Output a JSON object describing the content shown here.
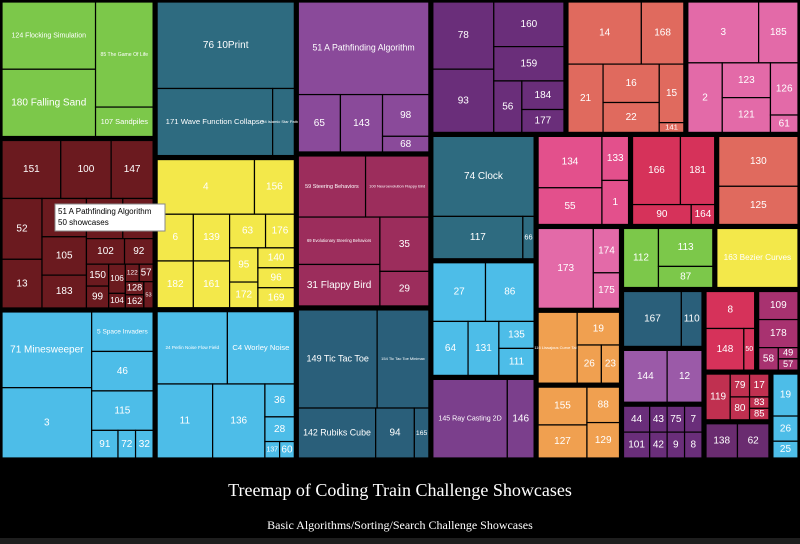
{
  "chart_data": {
    "type": "treemap",
    "title": "Treemap of Coding Train Challenge Showcases",
    "subtitle": "Basic Algorithms/Sorting/Search Challenge Showcases",
    "tooltip": {
      "title": "51 A Pathfinding Algorithm",
      "text": "50 showcases"
    },
    "groups": [
      {
        "color": "#7cc84a",
        "children": [
          {
            "name": "124 Flocking Simulation",
            "value": 26
          },
          {
            "name": "180 Falling Sand",
            "value": 26
          },
          {
            "name": "85 The Game Of Life",
            "value": 25
          },
          {
            "name": "107 Sandpiles",
            "value": 7
          }
        ]
      },
      {
        "color": "#6b1a1f",
        "children": [
          {
            "name": "151",
            "value": 14
          },
          {
            "name": "100",
            "value": 12
          },
          {
            "name": "147",
            "value": 10
          },
          {
            "name": "52",
            "value": 10
          },
          {
            "name": "13",
            "value": 8
          },
          {
            "name": "132",
            "value": 7
          },
          {
            "name": "105",
            "value": 7
          },
          {
            "name": "183",
            "value": 6
          },
          {
            "name": "34",
            "value": 6
          },
          {
            "name": "103",
            "value": 5
          },
          {
            "name": "102",
            "value": 4
          },
          {
            "name": "92",
            "value": 3
          },
          {
            "name": "150",
            "value": 2
          },
          {
            "name": "99",
            "value": 2
          },
          {
            "name": "106",
            "value": 2
          },
          {
            "name": "104",
            "value": 1
          },
          {
            "name": "122",
            "value": 1
          },
          {
            "name": "57",
            "value": 1
          },
          {
            "name": "128",
            "value": 1
          },
          {
            "name": "162",
            "value": 1
          },
          {
            "name": "53",
            "value": 1
          }
        ]
      },
      {
        "color": "#4dbde8",
        "children": [
          {
            "name": "71 Minesweeper",
            "value": 28
          },
          {
            "name": "3",
            "value": 26
          },
          {
            "name": "5 Space Invaders",
            "value": 10
          },
          {
            "name": "46",
            "value": 10
          },
          {
            "name": "115",
            "value": 10
          },
          {
            "name": "91",
            "value": 3
          },
          {
            "name": "72",
            "value": 2
          },
          {
            "name": "32",
            "value": 2
          }
        ]
      },
      {
        "color": "#2e6b80",
        "children": [
          {
            "name": "76 10Print",
            "value": 49
          },
          {
            "name": "171 Wave Function Collapse",
            "value": 32
          },
          {
            "name": "54 Islamic Star Patterns",
            "value": 6
          }
        ]
      },
      {
        "color": "#f3e84a",
        "children": [
          {
            "name": "4",
            "value": 22
          },
          {
            "name": "156",
            "value": 9
          },
          {
            "name": "6",
            "value": 7
          },
          {
            "name": "182",
            "value": 7
          },
          {
            "name": "139",
            "value": 7
          },
          {
            "name": "161",
            "value": 7
          },
          {
            "name": "63",
            "value": 5
          },
          {
            "name": "176",
            "value": 4
          },
          {
            "name": "95",
            "value": 4
          },
          {
            "name": "172",
            "value": 3
          },
          {
            "name": "140",
            "value": 3
          },
          {
            "name": "96",
            "value": 3
          },
          {
            "name": "169",
            "value": 3
          }
        ]
      },
      {
        "color": "#4dbde8",
        "children": [
          {
            "name": "24 Perlin Noise Flow Field",
            "value": 21
          },
          {
            "name": "C4 Worley Noise",
            "value": 20
          },
          {
            "name": "11",
            "value": 17
          },
          {
            "name": "136",
            "value": 16
          },
          {
            "name": "36",
            "value": 4
          },
          {
            "name": "28",
            "value": 3
          },
          {
            "name": "137",
            "value": 1
          },
          {
            "name": "60",
            "value": 1
          }
        ]
      },
      {
        "color": "#8a4a9a",
        "children": [
          {
            "name": "51 A Pathfinding Algorithm",
            "value": 50
          },
          {
            "name": "65",
            "value": 10
          },
          {
            "name": "143",
            "value": 10
          },
          {
            "name": "98",
            "value": 8
          },
          {
            "name": "68",
            "value": 3
          }
        ]
      },
      {
        "color": "#9c2d5c",
        "children": [
          {
            "name": "59 Steering Behaviors",
            "value": 17
          },
          {
            "name": "100 Neuroevolution Flappy Bird",
            "value": 16
          },
          {
            "name": "69 Evolutionary Steering Behaviors",
            "value": 16
          },
          {
            "name": "31 Flappy Bird",
            "value": 14
          },
          {
            "name": "35",
            "value": 11
          },
          {
            "name": "29",
            "value": 7
          }
        ]
      },
      {
        "color": "#2a5f7a",
        "children": [
          {
            "name": "149 Tic Tac Toe",
            "value": 32
          },
          {
            "name": "154 Tic Tac Toe Minimax",
            "value": 21
          },
          {
            "name": "142 Rubiks Cube",
            "value": 16
          },
          {
            "name": "94",
            "value": 8
          },
          {
            "name": "165",
            "value": 3
          }
        ]
      },
      {
        "color": "#6a2e7a",
        "children": [
          {
            "name": "78",
            "value": 17
          },
          {
            "name": "93",
            "value": 16
          },
          {
            "name": "160",
            "value": 13
          },
          {
            "name": "159",
            "value": 10
          },
          {
            "name": "56",
            "value": 6
          },
          {
            "name": "184",
            "value": 5
          },
          {
            "name": "177",
            "value": 4
          }
        ]
      },
      {
        "color": "#e06a5e",
        "children": [
          {
            "name": "14",
            "value": 19
          },
          {
            "name": "168",
            "value": 11
          },
          {
            "name": "21",
            "value": 10
          },
          {
            "name": "16",
            "value": 9
          },
          {
            "name": "22",
            "value": 7
          },
          {
            "name": "15",
            "value": 6
          },
          {
            "name": "141",
            "value": 1
          }
        ]
      },
      {
        "color": "#e36aa8",
        "children": [
          {
            "name": "3",
            "value": 18
          },
          {
            "name": "185",
            "value": 10
          },
          {
            "name": "2",
            "value": 10
          },
          {
            "name": "123",
            "value": 7
          },
          {
            "name": "121",
            "value": 7
          },
          {
            "name": "126",
            "value": 6
          },
          {
            "name": "61",
            "value": 2
          }
        ]
      },
      {
        "color": "#2e6b80",
        "children": [
          {
            "name": "74 Clock",
            "value": 34
          },
          {
            "name": "117",
            "value": 16
          },
          {
            "name": "66",
            "value": 2
          }
        ]
      },
      {
        "color": "#4dbde8",
        "children": [
          {
            "name": "27",
            "value": 13
          },
          {
            "name": "86",
            "value": 12
          },
          {
            "name": "64",
            "value": 8
          },
          {
            "name": "131",
            "value": 7
          },
          {
            "name": "135",
            "value": 4
          },
          {
            "name": "111",
            "value": 4
          }
        ]
      },
      {
        "color": "#7b3f8c",
        "children": [
          {
            "name": "145 Ray Casting 2D",
            "value": 25
          },
          {
            "name": "146",
            "value": 9
          }
        ]
      },
      {
        "color": "#e3508c",
        "children": [
          {
            "name": "134",
            "value": 14
          },
          {
            "name": "55",
            "value": 10
          },
          {
            "name": "133",
            "value": 5
          },
          {
            "name": "1",
            "value": 5
          }
        ]
      },
      {
        "color": "#d6325a",
        "children": [
          {
            "name": "166",
            "value": 14
          },
          {
            "name": "181",
            "value": 10
          },
          {
            "name": "90",
            "value": 5
          },
          {
            "name": "164",
            "value": 2
          }
        ]
      },
      {
        "color": "#e06a5e",
        "children": [
          {
            "name": "130",
            "value": 17
          },
          {
            "name": "125",
            "value": 13
          }
        ]
      },
      {
        "color": "#e36aa8",
        "children": [
          {
            "name": "173",
            "value": 19
          },
          {
            "name": "174",
            "value": 5
          },
          {
            "name": "175",
            "value": 4
          }
        ]
      },
      {
        "color": "#f0a050",
        "children": [
          {
            "name": "116 Lissajous Curve Table",
            "value": 12
          },
          {
            "name": "19",
            "value": 6
          },
          {
            "name": "26",
            "value": 4
          },
          {
            "name": "23",
            "value": 3
          }
        ]
      },
      {
        "color": "#f0a050",
        "children": [
          {
            "name": "155",
            "value": 8
          },
          {
            "name": "127",
            "value": 7
          },
          {
            "name": "88",
            "value": 5
          },
          {
            "name": "129",
            "value": 5
          }
        ]
      },
      {
        "color": "#7cc84a",
        "children": [
          {
            "name": "112",
            "value": 9
          },
          {
            "name": "113",
            "value": 9
          },
          {
            "name": "87",
            "value": 5
          }
        ]
      },
      {
        "color": "#f3e84a",
        "children": [
          {
            "name": "163 Bezier Curves",
            "value": 21
          }
        ]
      },
      {
        "color": "#2a5f7a",
        "children": [
          {
            "name": "167",
            "value": 14
          },
          {
            "name": "110",
            "value": 5
          }
        ]
      },
      {
        "color": "#9b5aa8",
        "children": [
          {
            "name": "144",
            "value": 10
          },
          {
            "name": "12",
            "value": 8
          }
        ]
      },
      {
        "color": "#6a2e7a",
        "children": [
          {
            "name": "44",
            "value": 3
          },
          {
            "name": "101",
            "value": 3
          },
          {
            "name": "43",
            "value": 2
          },
          {
            "name": "42",
            "value": 2
          },
          {
            "name": "75",
            "value": 2
          },
          {
            "name": "7",
            "value": 2
          },
          {
            "name": "9",
            "value": 2
          },
          {
            "name": "8",
            "value": 2
          }
        ]
      },
      {
        "color": "#d6325a",
        "children": [
          {
            "name": "8",
            "value": 8
          },
          {
            "name": "148",
            "value": 7
          },
          {
            "name": "50",
            "value": 2
          }
        ]
      },
      {
        "color": "#a83270",
        "children": [
          {
            "name": "109",
            "value": 5
          },
          {
            "name": "178",
            "value": 5
          },
          {
            "name": "58",
            "value": 2
          },
          {
            "name": "49",
            "value": 1
          },
          {
            "name": "57",
            "value": 1
          }
        ]
      },
      {
        "color": "#c03050",
        "children": [
          {
            "name": "119",
            "value": 5
          },
          {
            "name": "79",
            "value": 2
          },
          {
            "name": "17",
            "value": 2
          },
          {
            "name": "80",
            "value": 2
          },
          {
            "name": "83",
            "value": 1
          },
          {
            "name": "85",
            "value": 1
          }
        ]
      },
      {
        "color": "#6a2c70",
        "children": [
          {
            "name": "138",
            "value": 5
          },
          {
            "name": "62",
            "value": 5
          }
        ]
      },
      {
        "color": "#4dbde8",
        "children": [
          {
            "name": "19",
            "value": 5
          },
          {
            "name": "26",
            "value": 3
          },
          {
            "name": "25",
            "value": 2
          }
        ]
      }
    ]
  }
}
